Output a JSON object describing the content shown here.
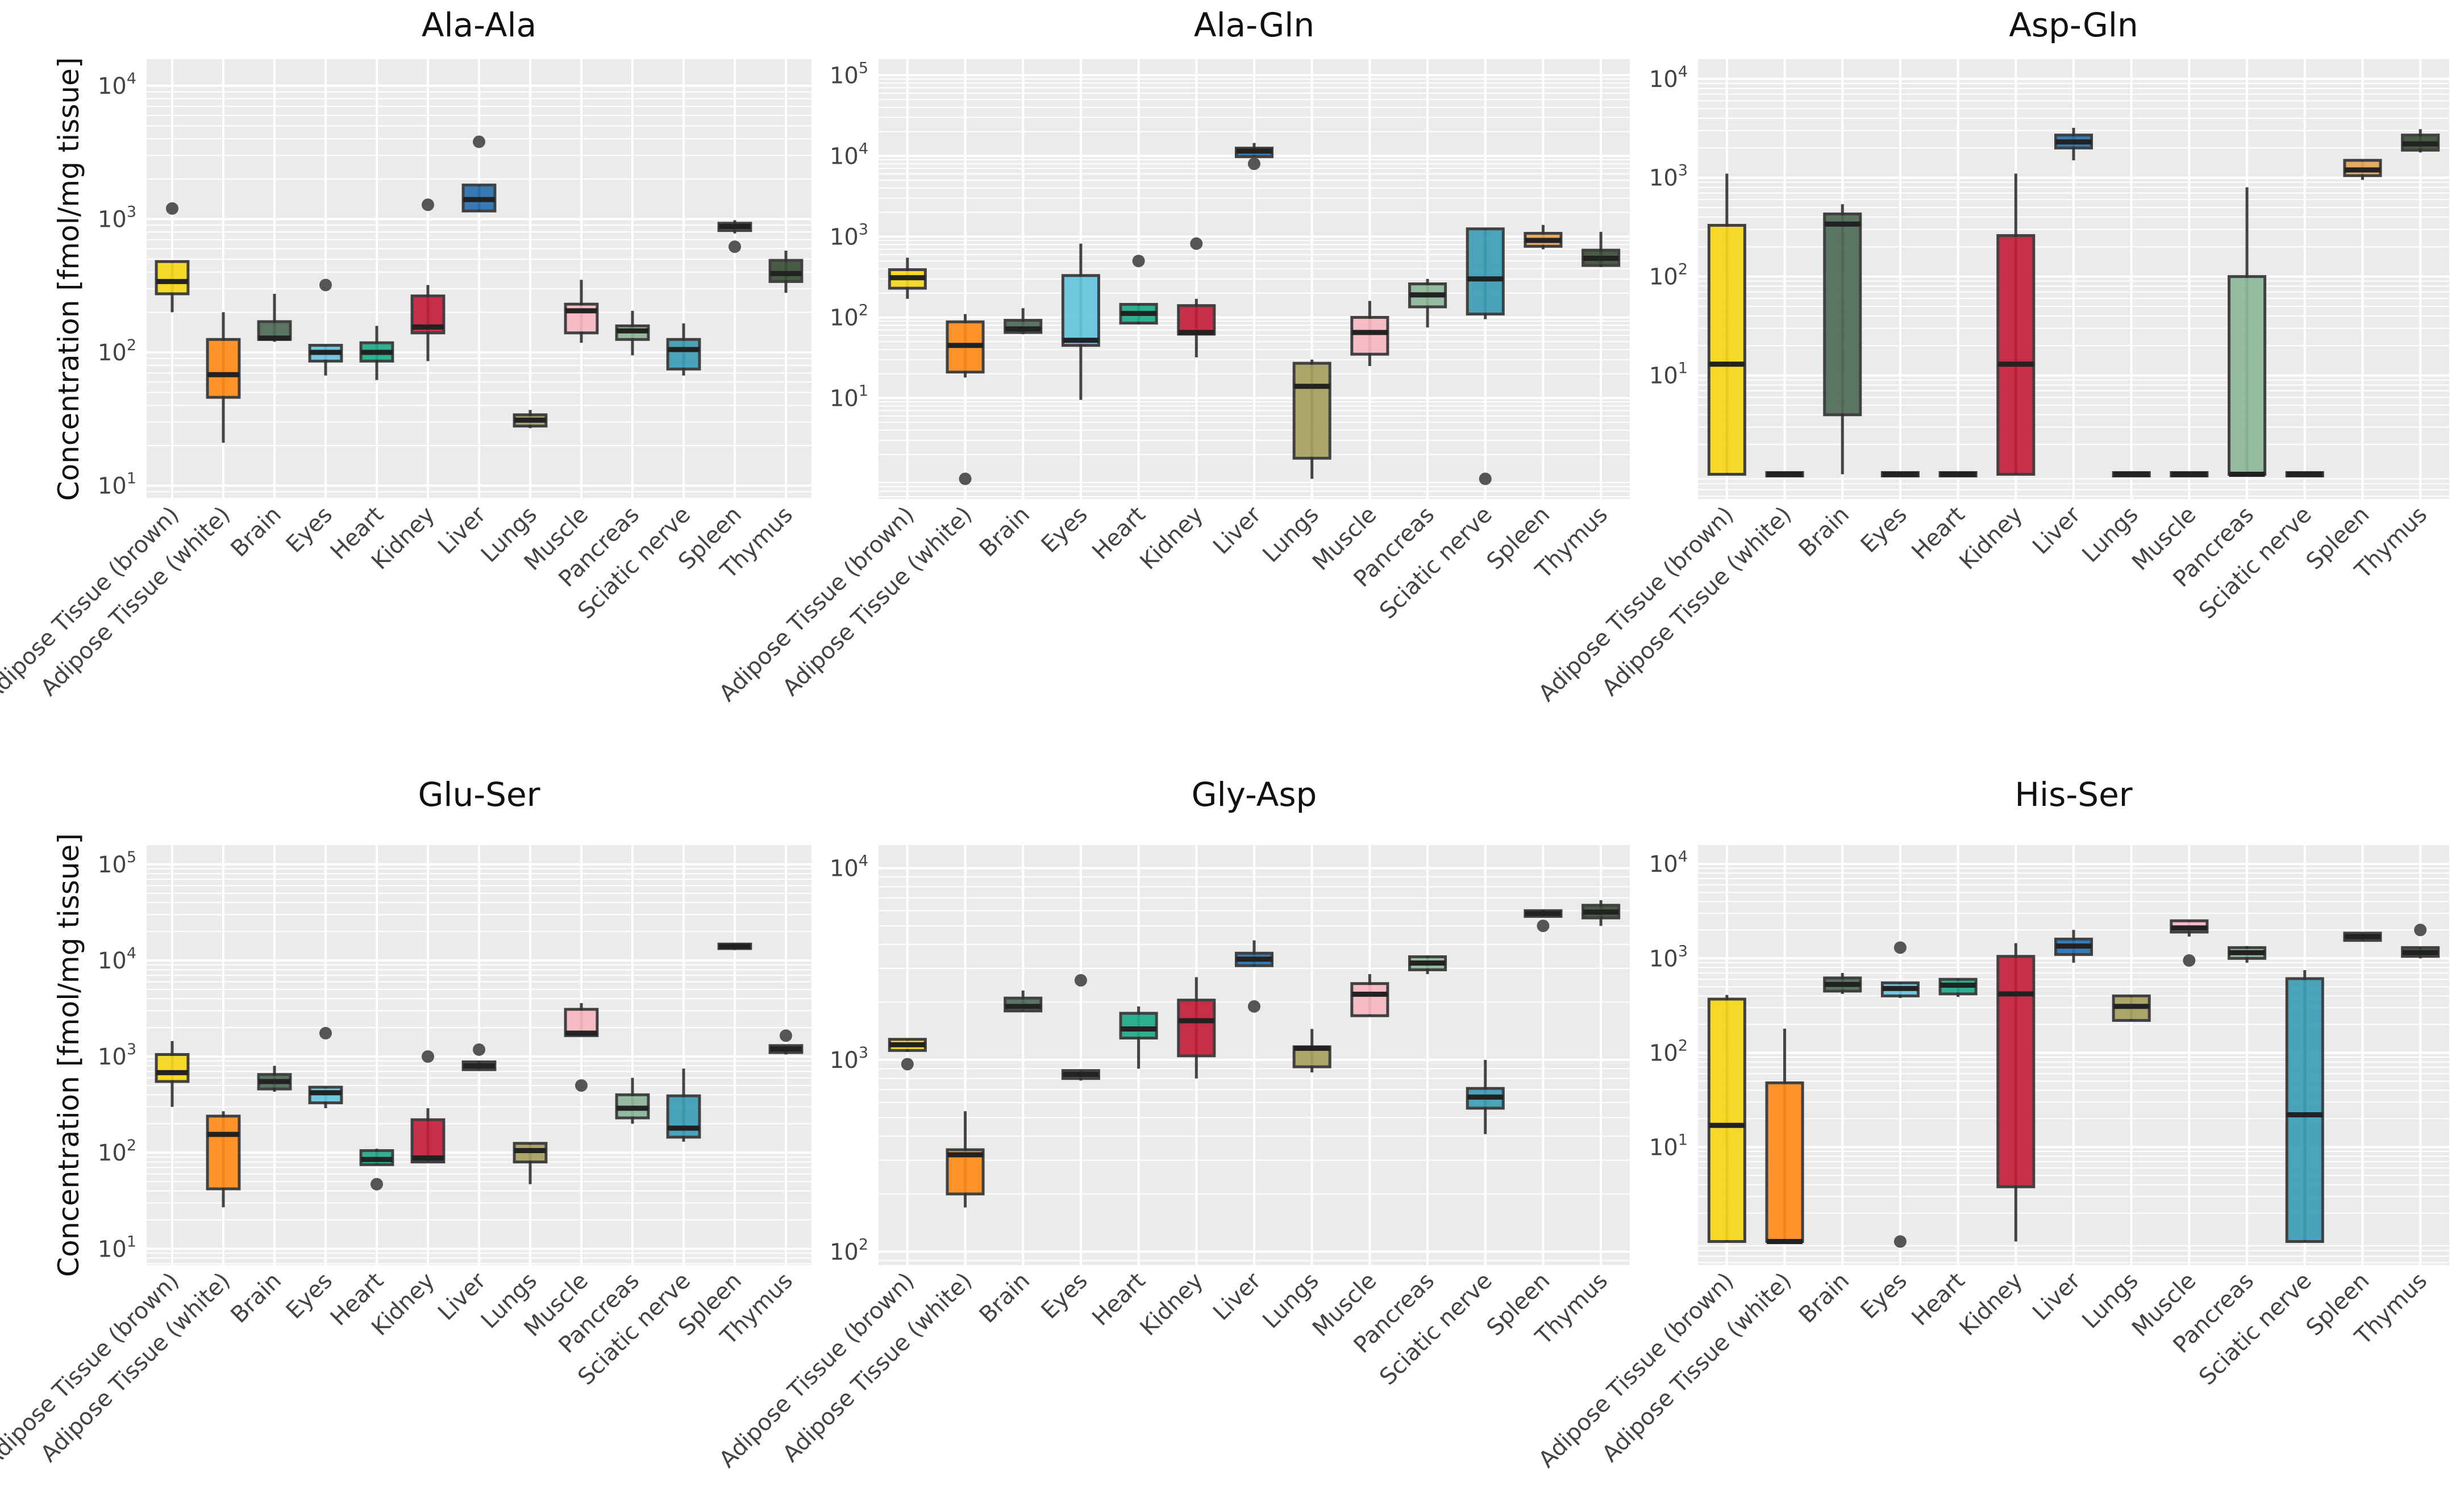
{
  "figure": {
    "ylabel": "Concentration [fmol/mg tissue]",
    "categories": [
      "Adipose Tissue (brown)",
      "Adipose Tissue (white)",
      "Brain",
      "Eyes",
      "Heart",
      "Kidney",
      "Liver",
      "Lungs",
      "Muscle",
      "Pancreas",
      "Sciatic nerve",
      "Spleen",
      "Thymus"
    ],
    "colors": [
      "#F8D718",
      "#FF8C1A",
      "#4F6B58",
      "#66C5E0",
      "#1FAB8A",
      "#C41E3A",
      "#2673B3",
      "#A7A060",
      "#F8B9C0",
      "#8DB89A",
      "#3D9DB8",
      "#E4A658",
      "#3D4F35"
    ]
  },
  "chart_data": [
    {
      "type": "box",
      "title": "Ala-Ala",
      "yscale": "log",
      "ylim_exp": [
        0.9,
        4.2
      ],
      "yticks_exp": [
        1,
        2,
        3,
        4
      ],
      "boxes": [
        {
          "category": "Adipose Tissue (brown)",
          "min": 200,
          "q1": 275,
          "median": 340,
          "q3": 480,
          "max": 480,
          "outliers": [
            1200
          ]
        },
        {
          "category": "Adipose Tissue (white)",
          "min": 21,
          "q1": 46,
          "median": 68,
          "q3": 125,
          "max": 200,
          "outliers": []
        },
        {
          "category": "Brain",
          "min": 120,
          "q1": 125,
          "median": 128,
          "q3": 170,
          "max": 275,
          "outliers": []
        },
        {
          "category": "Eyes",
          "min": 67,
          "q1": 86,
          "median": 100,
          "q3": 113,
          "max": 113,
          "outliers": [
            320
          ]
        },
        {
          "category": "Heart",
          "min": 62,
          "q1": 86,
          "median": 100,
          "q3": 118,
          "max": 158,
          "outliers": []
        },
        {
          "category": "Kidney",
          "min": 86,
          "q1": 140,
          "median": 155,
          "q3": 265,
          "max": 320,
          "outliers": [
            1280
          ]
        },
        {
          "category": "Liver",
          "min": 1150,
          "q1": 1150,
          "median": 1400,
          "q3": 1800,
          "max": 1800,
          "outliers": [
            3800
          ]
        },
        {
          "category": "Lungs",
          "min": 27,
          "q1": 28,
          "median": 31,
          "q3": 34,
          "max": 37,
          "outliers": []
        },
        {
          "category": "Muscle",
          "min": 118,
          "q1": 140,
          "median": 205,
          "q3": 230,
          "max": 350,
          "outliers": []
        },
        {
          "category": "Pancreas",
          "min": 95,
          "q1": 125,
          "median": 145,
          "q3": 158,
          "max": 205,
          "outliers": []
        },
        {
          "category": "Sciatic nerve",
          "min": 67,
          "q1": 75,
          "median": 105,
          "q3": 125,
          "max": 165,
          "outliers": []
        },
        {
          "category": "Spleen",
          "min": 780,
          "q1": 820,
          "median": 880,
          "q3": 930,
          "max": 980,
          "outliers": [
            620
          ]
        },
        {
          "category": "Thymus",
          "min": 280,
          "q1": 340,
          "median": 390,
          "q3": 490,
          "max": 580,
          "outliers": []
        }
      ]
    },
    {
      "type": "box",
      "title": "Ala-Gln",
      "yscale": "log",
      "ylim_exp": [
        -0.25,
        5.2
      ],
      "yticks_exp": [
        1,
        2,
        3,
        4,
        5
      ],
      "boxes": [
        {
          "category": "Adipose Tissue (brown)",
          "min": 170,
          "q1": 230,
          "median": 310,
          "q3": 390,
          "max": 550,
          "outliers": []
        },
        {
          "category": "Adipose Tissue (white)",
          "min": 18,
          "q1": 21,
          "median": 45,
          "q3": 88,
          "max": 110,
          "outliers": [
            1
          ]
        },
        {
          "category": "Brain",
          "min": 62,
          "q1": 65,
          "median": 72,
          "q3": 92,
          "max": 130,
          "outliers": []
        },
        {
          "category": "Eyes",
          "min": 9.5,
          "q1": 45,
          "median": 52,
          "q3": 330,
          "max": 820,
          "outliers": []
        },
        {
          "category": "Heart",
          "min": 82,
          "q1": 85,
          "median": 112,
          "q3": 145,
          "max": 145,
          "outliers": [
            500
          ]
        },
        {
          "category": "Kidney",
          "min": 32,
          "q1": 62,
          "median": 65,
          "q3": 140,
          "max": 170,
          "outliers": [
            820
          ]
        },
        {
          "category": "Liver",
          "min": 9800,
          "q1": 9800,
          "median": 11500,
          "q3": 12500,
          "max": 14500,
          "outliers": [
            8000
          ]
        },
        {
          "category": "Lungs",
          "min": 1,
          "q1": 1.8,
          "median": 14,
          "q3": 27,
          "max": 30,
          "outliers": []
        },
        {
          "category": "Muscle",
          "min": 25,
          "q1": 35,
          "median": 65,
          "q3": 100,
          "max": 160,
          "outliers": []
        },
        {
          "category": "Pancreas",
          "min": 75,
          "q1": 135,
          "median": 190,
          "q3": 260,
          "max": 300,
          "outliers": []
        },
        {
          "category": "Sciatic nerve",
          "min": 95,
          "q1": 110,
          "median": 300,
          "q3": 1250,
          "max": 1250,
          "outliers": [
            1
          ]
        },
        {
          "category": "Spleen",
          "min": 700,
          "q1": 760,
          "median": 900,
          "q3": 1100,
          "max": 1400,
          "outliers": []
        },
        {
          "category": "Thymus",
          "min": 420,
          "q1": 440,
          "median": 540,
          "q3": 680,
          "max": 1150,
          "outliers": []
        }
      ]
    },
    {
      "type": "box",
      "title": "Asp-Gln",
      "yscale": "log",
      "ylim_exp": [
        -0.25,
        4.2
      ],
      "yticks_exp": [
        1,
        2,
        3,
        4
      ],
      "boxes": [
        {
          "category": "Adipose Tissue (brown)",
          "min": 1,
          "q1": 1,
          "median": 13,
          "q3": 330,
          "max": 1100,
          "outliers": []
        },
        {
          "category": "Adipose Tissue (white)",
          "min": 1,
          "q1": 1,
          "median": 1,
          "q3": 1,
          "max": 1,
          "outliers": []
        },
        {
          "category": "Brain",
          "min": 1,
          "q1": 4,
          "median": 340,
          "q3": 430,
          "max": 540,
          "outliers": []
        },
        {
          "category": "Eyes",
          "min": 1,
          "q1": 1,
          "median": 1,
          "q3": 1,
          "max": 1,
          "outliers": []
        },
        {
          "category": "Heart",
          "min": 1,
          "q1": 1,
          "median": 1,
          "q3": 1,
          "max": 1,
          "outliers": []
        },
        {
          "category": "Kidney",
          "min": 1,
          "q1": 1,
          "median": 13,
          "q3": 260,
          "max": 1100,
          "outliers": []
        },
        {
          "category": "Liver",
          "min": 1500,
          "q1": 2000,
          "median": 2300,
          "q3": 2700,
          "max": 3200,
          "outliers": []
        },
        {
          "category": "Lungs",
          "min": 1,
          "q1": 1,
          "median": 1,
          "q3": 1,
          "max": 1,
          "outliers": []
        },
        {
          "category": "Muscle",
          "min": 1,
          "q1": 1,
          "median": 1,
          "q3": 1,
          "max": 1,
          "outliers": []
        },
        {
          "category": "Pancreas",
          "min": 1,
          "q1": 1,
          "median": 1,
          "q3": 100,
          "max": 800,
          "outliers": []
        },
        {
          "category": "Sciatic nerve",
          "min": 1,
          "q1": 1,
          "median": 1,
          "q3": 1,
          "max": 1,
          "outliers": []
        },
        {
          "category": "Spleen",
          "min": 950,
          "q1": 1050,
          "median": 1200,
          "q3": 1500,
          "max": 1500,
          "outliers": []
        },
        {
          "category": "Thymus",
          "min": 1800,
          "q1": 1900,
          "median": 2200,
          "q3": 2700,
          "max": 3100,
          "outliers": []
        }
      ]
    },
    {
      "type": "box",
      "title": "Glu-Ser",
      "yscale": "log",
      "ylim_exp": [
        0.83,
        5.2
      ],
      "yticks_exp": [
        1,
        2,
        3,
        4,
        5
      ],
      "boxes": [
        {
          "category": "Adipose Tissue (brown)",
          "min": 300,
          "q1": 550,
          "median": 680,
          "q3": 1050,
          "max": 1450,
          "outliers": []
        },
        {
          "category": "Adipose Tissue (white)",
          "min": 27,
          "q1": 42,
          "median": 155,
          "q3": 240,
          "max": 270,
          "outliers": []
        },
        {
          "category": "Brain",
          "min": 430,
          "q1": 460,
          "median": 550,
          "q3": 650,
          "max": 800,
          "outliers": []
        },
        {
          "category": "Eyes",
          "min": 290,
          "q1": 330,
          "median": 420,
          "q3": 480,
          "max": 480,
          "outliers": [
            1750
          ]
        },
        {
          "category": "Heart",
          "min": 75,
          "q1": 75,
          "median": 85,
          "q3": 105,
          "max": 110,
          "outliers": [
            47
          ]
        },
        {
          "category": "Kidney",
          "min": 80,
          "q1": 80,
          "median": 88,
          "q3": 220,
          "max": 290,
          "outliers": [
            1000
          ]
        },
        {
          "category": "Liver",
          "min": 730,
          "q1": 730,
          "median": 800,
          "q3": 880,
          "max": 900,
          "outliers": [
            1180
          ]
        },
        {
          "category": "Lungs",
          "min": 47,
          "q1": 80,
          "median": 105,
          "q3": 125,
          "max": 125,
          "outliers": []
        },
        {
          "category": "Muscle",
          "min": 1650,
          "q1": 1650,
          "median": 1750,
          "q3": 3100,
          "max": 3600,
          "outliers": [
            500
          ]
        },
        {
          "category": "Pancreas",
          "min": 200,
          "q1": 230,
          "median": 290,
          "q3": 400,
          "max": 600,
          "outliers": []
        },
        {
          "category": "Sciatic nerve",
          "min": 130,
          "q1": 145,
          "median": 180,
          "q3": 390,
          "max": 750,
          "outliers": []
        },
        {
          "category": "Spleen",
          "min": 12800,
          "q1": 13300,
          "median": 14000,
          "q3": 14800,
          "max": 15000,
          "outliers": []
        },
        {
          "category": "Thymus",
          "min": 1050,
          "q1": 1100,
          "median": 1200,
          "q3": 1300,
          "max": 1300,
          "outliers": [
            1650
          ]
        }
      ]
    },
    {
      "type": "box",
      "title": "Gly-Asp",
      "yscale": "log",
      "ylim_exp": [
        1.93,
        4.12
      ],
      "yticks_exp": [
        2,
        3,
        4
      ],
      "boxes": [
        {
          "category": "Adipose Tissue (brown)",
          "min": 1100,
          "q1": 1120,
          "median": 1200,
          "q3": 1280,
          "max": 1280,
          "outliers": [
            950
          ]
        },
        {
          "category": "Adipose Tissue (white)",
          "min": 170,
          "q1": 200,
          "median": 320,
          "q3": 340,
          "max": 540,
          "outliers": []
        },
        {
          "category": "Brain",
          "min": 1800,
          "q1": 1800,
          "median": 1900,
          "q3": 2100,
          "max": 2300,
          "outliers": []
        },
        {
          "category": "Eyes",
          "min": 780,
          "q1": 800,
          "median": 840,
          "q3": 880,
          "max": 880,
          "outliers": [
            2600
          ]
        },
        {
          "category": "Heart",
          "min": 900,
          "q1": 1300,
          "median": 1450,
          "q3": 1750,
          "max": 1900,
          "outliers": []
        },
        {
          "category": "Kidney",
          "min": 800,
          "q1": 1050,
          "median": 1600,
          "q3": 2050,
          "max": 2700,
          "outliers": []
        },
        {
          "category": "Liver",
          "min": 3050,
          "q1": 3100,
          "median": 3350,
          "q3": 3600,
          "max": 4200,
          "outliers": [
            1900
          ]
        },
        {
          "category": "Lungs",
          "min": 860,
          "q1": 920,
          "median": 1150,
          "q3": 1170,
          "max": 1450,
          "outliers": []
        },
        {
          "category": "Muscle",
          "min": 1700,
          "q1": 1700,
          "median": 2200,
          "q3": 2500,
          "max": 2800,
          "outliers": []
        },
        {
          "category": "Pancreas",
          "min": 2800,
          "q1": 2950,
          "median": 3200,
          "q3": 3450,
          "max": 3500,
          "outliers": []
        },
        {
          "category": "Sciatic nerve",
          "min": 410,
          "q1": 560,
          "median": 640,
          "q3": 710,
          "max": 1000,
          "outliers": []
        },
        {
          "category": "Spleen",
          "min": 5600,
          "q1": 5600,
          "median": 5800,
          "q3": 6000,
          "max": 6100,
          "outliers": [
            5000
          ]
        },
        {
          "category": "Thymus",
          "min": 5000,
          "q1": 5500,
          "median": 5900,
          "q3": 6400,
          "max": 6800,
          "outliers": []
        }
      ]
    },
    {
      "type": "box",
      "title": "His-Ser",
      "yscale": "log",
      "ylim_exp": [
        -0.25,
        4.2
      ],
      "yticks_exp": [
        1,
        2,
        3,
        4
      ],
      "boxes": [
        {
          "category": "Adipose Tissue (brown)",
          "min": 1,
          "q1": 1,
          "median": 17,
          "q3": 370,
          "max": 410,
          "outliers": []
        },
        {
          "category": "Adipose Tissue (white)",
          "min": 1,
          "q1": 1,
          "median": 1,
          "q3": 48,
          "max": 180,
          "outliers": []
        },
        {
          "category": "Brain",
          "min": 420,
          "q1": 450,
          "median": 530,
          "q3": 620,
          "max": 700,
          "outliers": []
        },
        {
          "category": "Eyes",
          "min": 380,
          "q1": 400,
          "median": 480,
          "q3": 550,
          "max": 550,
          "outliers": [
            1,
            1300
          ]
        },
        {
          "category": "Heart",
          "min": 390,
          "q1": 420,
          "median": 520,
          "q3": 600,
          "max": 610,
          "outliers": []
        },
        {
          "category": "Kidney",
          "min": 1,
          "q1": 3.8,
          "median": 420,
          "q3": 1050,
          "max": 1450,
          "outliers": []
        },
        {
          "category": "Liver",
          "min": 900,
          "q1": 1100,
          "median": 1350,
          "q3": 1600,
          "max": 2000,
          "outliers": []
        },
        {
          "category": "Lungs",
          "min": 220,
          "q1": 220,
          "median": 310,
          "q3": 400,
          "max": 400,
          "outliers": []
        },
        {
          "category": "Muscle",
          "min": 1700,
          "q1": 1900,
          "median": 2100,
          "q3": 2500,
          "max": 2500,
          "outliers": [
            950
          ]
        },
        {
          "category": "Pancreas",
          "min": 900,
          "q1": 1000,
          "median": 1150,
          "q3": 1300,
          "max": 1350,
          "outliers": []
        },
        {
          "category": "Sciatic nerve",
          "min": 1,
          "q1": 1,
          "median": 22,
          "q3": 610,
          "max": 750,
          "outliers": []
        },
        {
          "category": "Spleen",
          "min": 1550,
          "q1": 1550,
          "median": 1700,
          "q3": 1850,
          "max": 1850,
          "outliers": []
        },
        {
          "category": "Thymus",
          "min": 1000,
          "q1": 1050,
          "median": 1150,
          "q3": 1300,
          "max": 1300,
          "outliers": [
            2000
          ]
        }
      ]
    }
  ]
}
